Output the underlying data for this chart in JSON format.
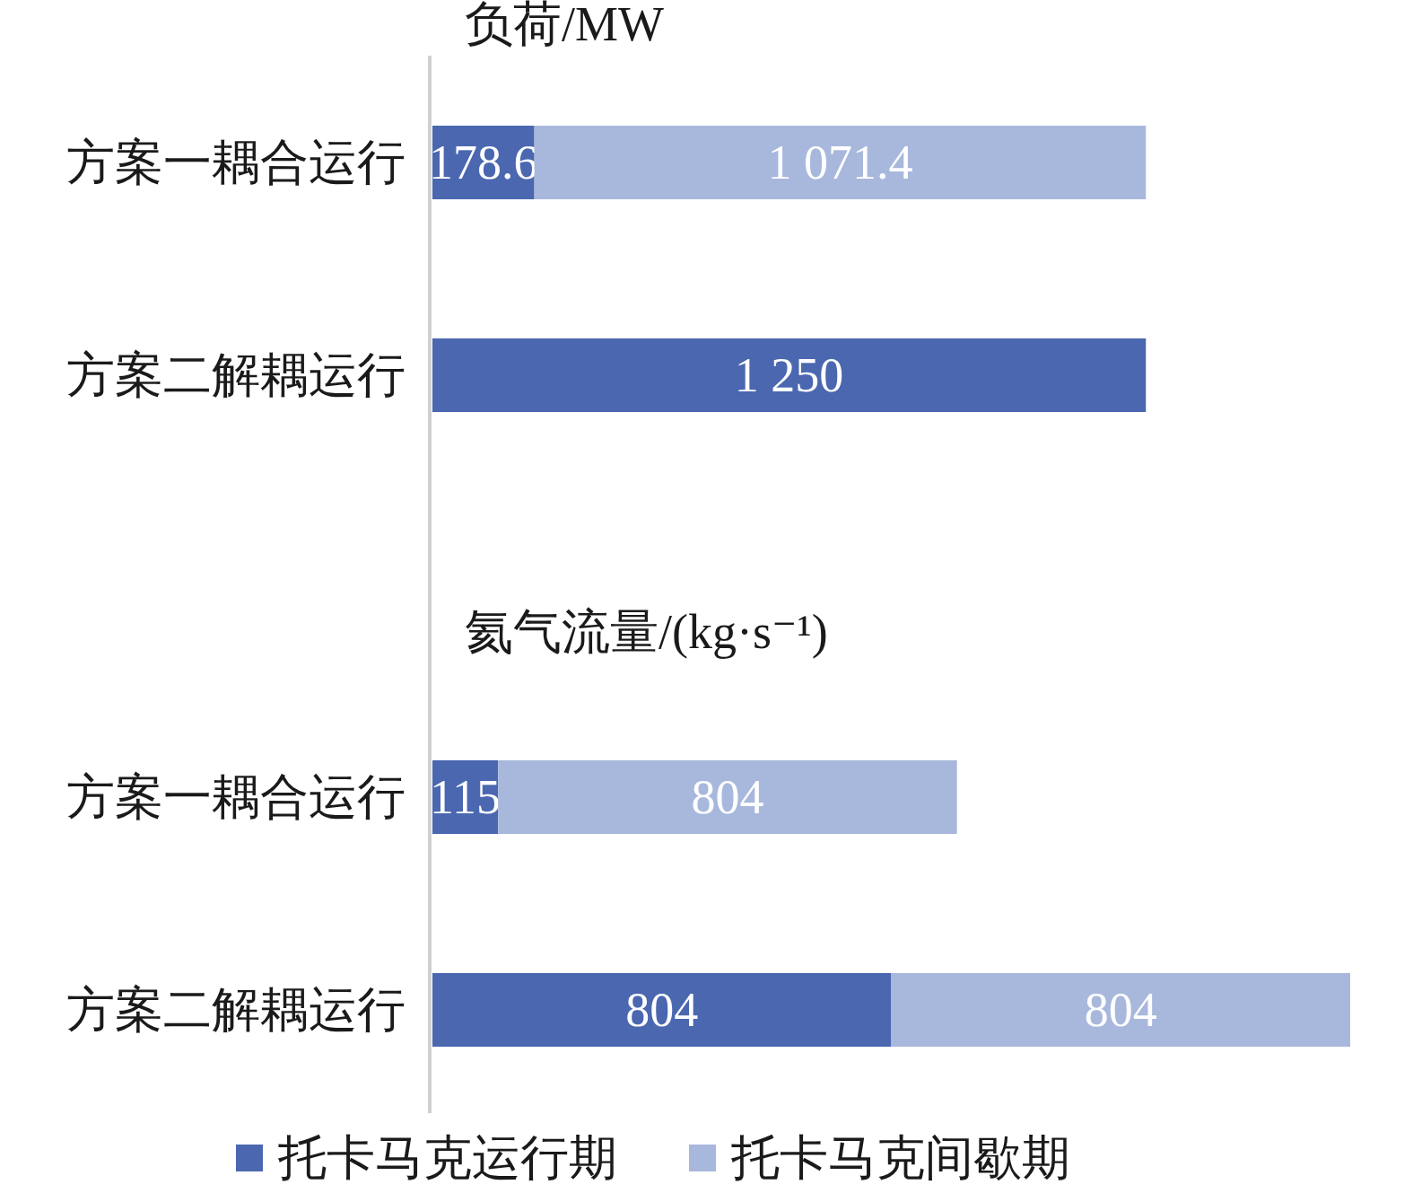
{
  "chart_data": [
    {
      "type": "bar",
      "orientation": "horizontal",
      "stacked": true,
      "title": "负荷/MW",
      "categories": [
        "方案一耦合运行",
        "方案二解耦运行"
      ],
      "series": [
        {
          "color": "#4a67b0",
          "values": [
            178.6,
            1250
          ],
          "value_labels": [
            "178.6",
            "1 250"
          ]
        },
        {
          "color": "#a8b8dc",
          "values": [
            1071.4,
            null
          ],
          "value_labels": [
            "1 071.4",
            null
          ]
        }
      ],
      "legend": false
    },
    {
      "type": "bar",
      "orientation": "horizontal",
      "stacked": true,
      "title": "氦气流量/(kg·s⁻¹)",
      "categories": [
        "方案一耦合运行",
        "方案二解耦运行"
      ],
      "series": [
        {
          "name": "托卡马克运行期",
          "color": "#4a67b0",
          "values": [
            115,
            804
          ],
          "value_labels": [
            "115",
            "804"
          ]
        },
        {
          "name": "托卡马克间歇期",
          "color": "#a8b8dc",
          "values": [
            804,
            804
          ],
          "value_labels": [
            "804",
            "804"
          ]
        }
      ],
      "legend": "bottom"
    }
  ]
}
